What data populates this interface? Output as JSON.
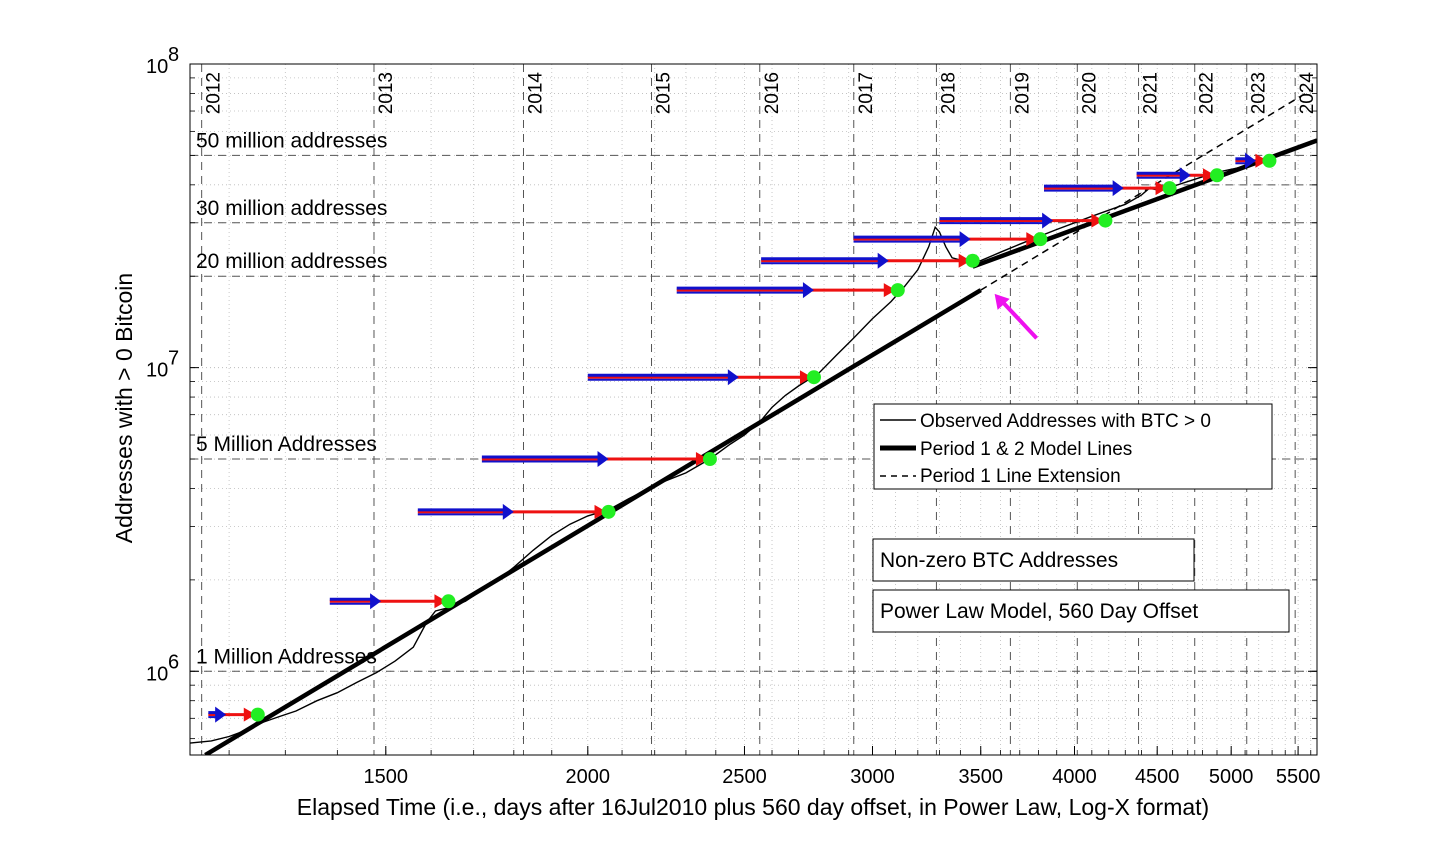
{
  "chart_data": {
    "type": "line",
    "xlabel": "Elapsed Time (i.e., days after 16Jul2010 plus 560 day offset, in Power Law, Log-X format)",
    "ylabel": "Addresses with > 0 Bitcoin",
    "x_scale": "log",
    "y_scale": "log",
    "xlim": [
      1135,
      5650
    ],
    "ylim": [
      530000,
      100000000
    ],
    "x_ticks": [
      {
        "value": 1500,
        "label": "1500"
      },
      {
        "value": 2000,
        "label": "2000"
      },
      {
        "value": 2500,
        "label": "2500"
      },
      {
        "value": 3000,
        "label": "3000"
      },
      {
        "value": 3500,
        "label": "3500"
      },
      {
        "value": 4000,
        "label": "4000"
      },
      {
        "value": 4500,
        "label": "4500"
      },
      {
        "value": 5000,
        "label": "5000"
      },
      {
        "value": 5500,
        "label": "5500"
      }
    ],
    "y_ticks": [
      {
        "value": 1000000,
        "base": "10",
        "exp": "6"
      },
      {
        "value": 10000000,
        "base": "10",
        "exp": "7"
      },
      {
        "value": 100000000,
        "base": "10",
        "exp": "8"
      }
    ],
    "grid": true,
    "year_markers": [
      {
        "label": "2012",
        "x": 1154
      },
      {
        "label": "2013",
        "x": 1475
      },
      {
        "label": "2014",
        "x": 1825
      },
      {
        "label": "2015",
        "x": 2190
      },
      {
        "label": "2016",
        "x": 2555
      },
      {
        "label": "2017",
        "x": 2921
      },
      {
        "label": "2018",
        "x": 3286
      },
      {
        "label": "2019",
        "x": 3651
      },
      {
        "label": "2020",
        "x": 4016
      },
      {
        "label": "2021",
        "x": 4382
      },
      {
        "label": "2022",
        "x": 4747
      },
      {
        "label": "2023",
        "x": 5112
      },
      {
        "label": "2024",
        "x": 5477
      }
    ],
    "threshold_lines": [
      {
        "label": "1 Million Addresses",
        "y": 1000000
      },
      {
        "label": "5 Million Addresses",
        "y": 5000000
      },
      {
        "label": "20 million addresses",
        "y": 20000000
      },
      {
        "label": "30 million addresses",
        "y": 30000000
      },
      {
        "label": "50 million addresses",
        "y": 50000000
      }
    ],
    "minor_dashed_y": [
      40000000
    ],
    "series": [
      {
        "name": "Observed Addresses with BTC > 0",
        "style": "thin-solid",
        "color": "#000000",
        "points": [
          [
            1135,
            580000
          ],
          [
            1170,
            590000
          ],
          [
            1200,
            610000
          ],
          [
            1230,
            640000
          ],
          [
            1260,
            680000
          ],
          [
            1290,
            710000
          ],
          [
            1320,
            740000
          ],
          [
            1360,
            800000
          ],
          [
            1400,
            850000
          ],
          [
            1440,
            920000
          ],
          [
            1480,
            990000
          ],
          [
            1520,
            1080000
          ],
          [
            1560,
            1200000
          ],
          [
            1590,
            1450000
          ],
          [
            1610,
            1580000
          ],
          [
            1640,
            1620000
          ],
          [
            1680,
            1700000
          ],
          [
            1720,
            1850000
          ],
          [
            1760,
            2000000
          ],
          [
            1800,
            2200000
          ],
          [
            1850,
            2500000
          ],
          [
            1900,
            2800000
          ],
          [
            1950,
            3050000
          ],
          [
            2000,
            3250000
          ],
          [
            2060,
            3400000
          ],
          [
            2120,
            3700000
          ],
          [
            2200,
            4100000
          ],
          [
            2300,
            4500000
          ],
          [
            2380,
            5000000
          ],
          [
            2450,
            5600000
          ],
          [
            2500,
            6000000
          ],
          [
            2560,
            6700000
          ],
          [
            2600,
            7400000
          ],
          [
            2650,
            8100000
          ],
          [
            2700,
            8700000
          ],
          [
            2780,
            9600000
          ],
          [
            2850,
            11000000
          ],
          [
            2920,
            12500000
          ],
          [
            3000,
            14500000
          ],
          [
            3080,
            16500000
          ],
          [
            3140,
            18500000
          ],
          [
            3200,
            21000000
          ],
          [
            3250,
            25000000
          ],
          [
            3280,
            29000000
          ],
          [
            3300,
            28000000
          ],
          [
            3330,
            25000000
          ],
          [
            3360,
            23000000
          ],
          [
            3400,
            22600000
          ],
          [
            3450,
            22400000
          ],
          [
            3500,
            22500000
          ],
          [
            3600,
            24000000
          ],
          [
            3700,
            25500000
          ],
          [
            3800,
            27000000
          ],
          [
            3900,
            28500000
          ],
          [
            4000,
            30000000
          ],
          [
            4100,
            31500000
          ],
          [
            4200,
            33000000
          ],
          [
            4300,
            34500000
          ],
          [
            4400,
            37000000
          ],
          [
            4450,
            39000000
          ],
          [
            4500,
            38500000
          ],
          [
            4600,
            39500000
          ],
          [
            4700,
            41000000
          ],
          [
            4800,
            42500000
          ],
          [
            4900,
            44000000
          ],
          [
            5000,
            45000000
          ],
          [
            5100,
            46000000
          ],
          [
            5200,
            47500000
          ],
          [
            5300,
            49000000
          ],
          [
            5400,
            51000000
          ],
          [
            5500,
            53000000
          ],
          [
            5650,
            56000000
          ]
        ]
      },
      {
        "name": "Period 1 & 2 Model Lines",
        "style": "thick-solid",
        "color": "#000000",
        "segments": [
          [
            [
              1160,
              530000
            ],
            [
              3500,
              18000000
            ]
          ],
          [
            [
              3460,
              21500000
            ],
            [
              5650,
              56000000
            ]
          ]
        ]
      },
      {
        "name": "Period 1 Line Extension",
        "style": "dashed",
        "color": "#000000",
        "segments": [
          [
            [
              3500,
              18000000
            ],
            [
              5600,
              82000000
            ]
          ]
        ]
      }
    ],
    "milestone_points": [
      {
        "x": 1250,
        "y": 720000,
        "arrow_from": 1165,
        "blue_end": 1195
      },
      {
        "x": 1640,
        "y": 1700000,
        "arrow_from": 1385,
        "blue_end": 1490
      },
      {
        "x": 2060,
        "y": 3350000,
        "arrow_from": 1570,
        "blue_end": 1800
      },
      {
        "x": 2380,
        "y": 5000000,
        "arrow_from": 1720,
        "blue_end": 2060
      },
      {
        "x": 2760,
        "y": 9300000,
        "arrow_from": 2000,
        "blue_end": 2480
      },
      {
        "x": 3110,
        "y": 18000000,
        "arrow_from": 2270,
        "blue_end": 2760
      },
      {
        "x": 3460,
        "y": 22500000,
        "arrow_from": 2560,
        "blue_end": 3070
      },
      {
        "x": 3810,
        "y": 26500000,
        "arrow_from": 2920,
        "blue_end": 3450
      },
      {
        "x": 4180,
        "y": 30500000,
        "arrow_from": 3300,
        "blue_end": 3880
      },
      {
        "x": 4580,
        "y": 39000000,
        "arrow_from": 3830,
        "blue_end": 4290
      },
      {
        "x": 4900,
        "y": 43000000,
        "arrow_from": 4370,
        "blue_end": 4720
      },
      {
        "x": 5280,
        "y": 48000000,
        "arrow_from": 5030,
        "blue_end": 5180
      }
    ],
    "highlight_arrow": {
      "color": "#ee11ee",
      "from": [
        3790,
        12500000
      ],
      "to": [
        3570,
        17500000
      ]
    },
    "legend": {
      "placement": "right-center",
      "entries": [
        {
          "label": "Observed Addresses with BTC > 0",
          "style": "thin-solid"
        },
        {
          "label": "Period 1 & 2 Model Lines",
          "style": "thick-solid"
        },
        {
          "label": "Period 1 Line Extension",
          "style": "dashed"
        }
      ]
    },
    "annotations": [
      "Non-zero BTC Addresses",
      "Power Law Model, 560 Day Offset"
    ],
    "colors": {
      "arrow_red": "#ee1111",
      "arrow_blue": "#1111cc",
      "milestone": "#22ee22",
      "grid": "#bbbbbb",
      "dashed_grid": "#555555"
    }
  }
}
